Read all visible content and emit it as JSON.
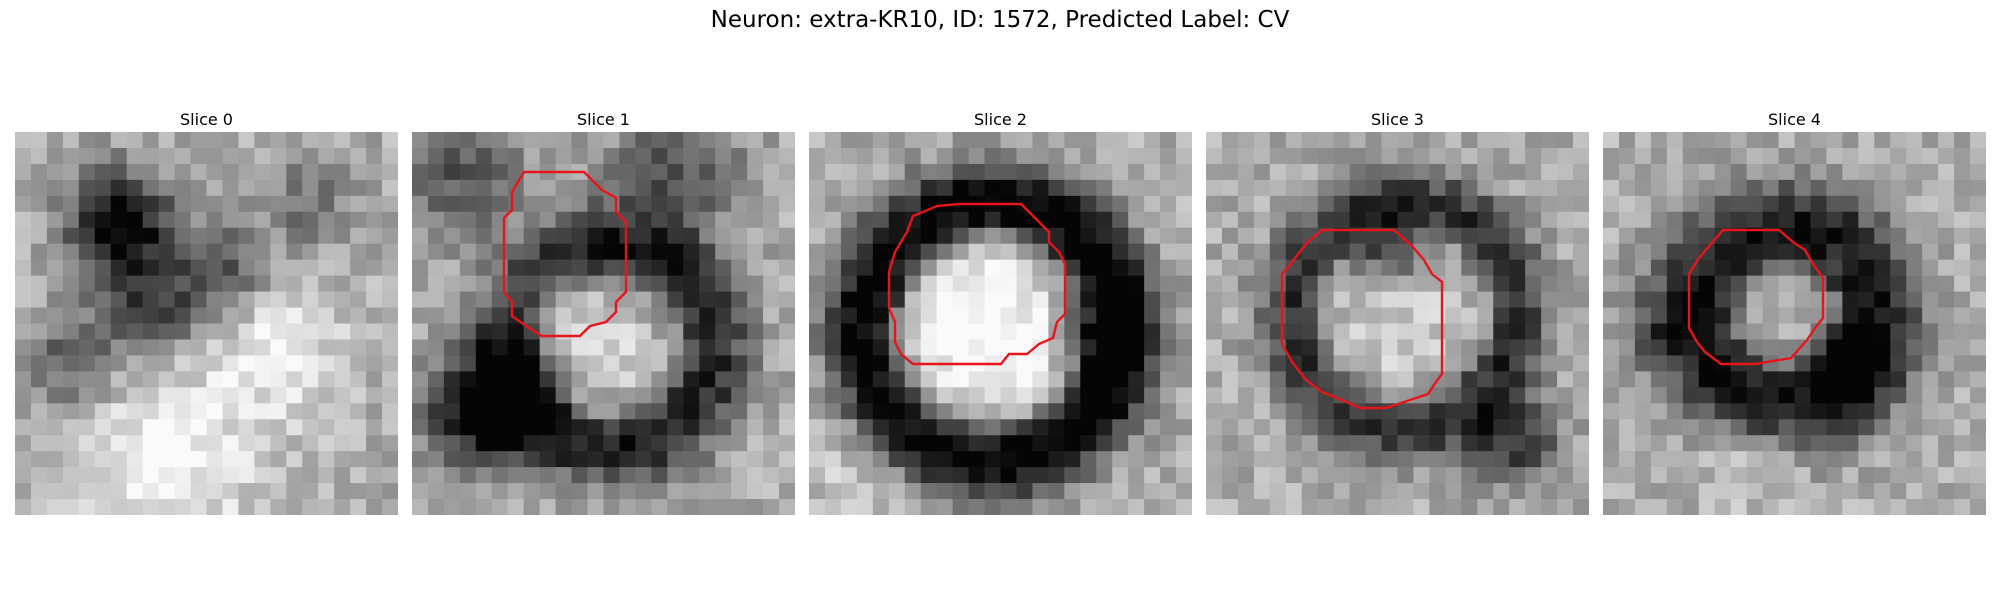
{
  "figure": {
    "title": "Neuron: extra-KR10, ID: 1572, Predicted Label: CV"
  },
  "panels": [
    {
      "title": "Slice 0",
      "has_contour": false
    },
    {
      "title": "Slice 1",
      "has_contour": true
    },
    {
      "title": "Slice 2",
      "has_contour": true
    },
    {
      "title": "Slice 3",
      "has_contour": true
    },
    {
      "title": "Slice 4",
      "has_contour": true
    }
  ],
  "colors": {
    "contour": "#e8141c",
    "colormap": "grayscale"
  }
}
